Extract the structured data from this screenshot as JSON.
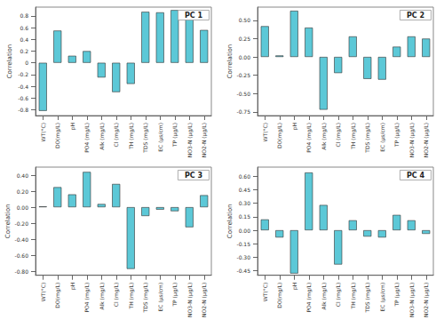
{
  "chart_data": [
    {
      "type": "bar",
      "title": "PC 1",
      "y_label": "Correlation",
      "categories": [
        "WT(°C)",
        "DO(mg/L)",
        "pH",
        "PO4 (mg/L)",
        "Alk (mg/L)",
        "Cl (mg/L)",
        "TH (mg/L)",
        "TDS (mg/L)",
        "EC (µs/cm)",
        "TP (µg/L)",
        "NO3-N (µg/L)",
        "NO2-N (µg/L)"
      ],
      "values": [
        -0.82,
        0.55,
        0.12,
        0.2,
        -0.25,
        -0.5,
        -0.36,
        0.87,
        0.86,
        0.9,
        0.8,
        0.56
      ],
      "color": "#5cc8d7",
      "ylim": [
        -0.9,
        0.95
      ],
      "yticks": [
        -0.8,
        -0.6,
        -0.4,
        -0.2,
        0,
        0.2,
        0.4,
        0.6,
        0.8
      ],
      "grid": false
    },
    {
      "type": "bar",
      "title": "PC 2",
      "y_label": "Correlation",
      "categories": [
        "WT(°C)",
        "DO(mg/L)",
        "pH",
        "PO4 (mg/L)",
        "Alk (mg/L)",
        "Cl (mg/L)",
        "TH (mg/L)",
        "TDS (mg/L)",
        "EC (µs/cm)",
        "TP (µg/L)",
        "NO3-N (µg/L)",
        "NO2-N (µg/L)"
      ],
      "values": [
        0.42,
        0.02,
        0.63,
        0.4,
        -0.72,
        -0.22,
        0.28,
        -0.3,
        -0.31,
        0.14,
        0.28,
        0.25
      ],
      "color": "#5cc8d7",
      "ylim": [
        -0.8,
        0.68
      ],
      "yticks": [
        {
          "value": -0.75,
          "label": "-0.75"
        },
        {
          "value": -0.5,
          "label": "-0.50"
        },
        {
          "value": -0.25,
          "label": "-0.25"
        },
        {
          "value": 0,
          "label": "0.00"
        },
        {
          "value": 0.25,
          "label": "0.25"
        },
        {
          "value": 0.5,
          "label": "0.50"
        }
      ],
      "grid": false
    },
    {
      "type": "bar",
      "title": "PC 3",
      "y_label": "Correlation",
      "categories": [
        "WT(°C)",
        "DO(mg/L)",
        "pH",
        "PO4 (mg/L)",
        "Alk (mg/L)",
        "Cl (mg/L)",
        "TH (mg/L)",
        "TDS (mg/L)",
        "EC (µs/cm)",
        "TP (µg/L)",
        "NO3-N (µg/L)",
        "NO2-N (µg/L)"
      ],
      "values": [
        0.01,
        0.25,
        0.16,
        0.44,
        0.04,
        0.29,
        -0.77,
        -0.11,
        -0.03,
        -0.05,
        -0.25,
        0.15
      ],
      "color": "#5cc8d7",
      "ylim": [
        -0.85,
        0.5
      ],
      "yticks": [
        {
          "value": -0.8,
          "label": "-0.80"
        },
        {
          "value": -0.6,
          "label": "-0.60"
        },
        {
          "value": -0.4,
          "label": "-0.40"
        },
        {
          "value": -0.2,
          "label": "-0.20"
        },
        {
          "value": 0,
          "label": "0.00"
        },
        {
          "value": 0.2,
          "label": "0.20"
        },
        {
          "value": 0.4,
          "label": "0.40"
        }
      ],
      "grid": false
    },
    {
      "type": "bar",
      "title": "PC 4",
      "y_label": "Correlation",
      "categories": [
        "WT(°C)",
        "DO(mg/L)",
        "pH",
        "PO4 (mg/L)",
        "Alk (mg/L)",
        "Cl (mg/L)",
        "TH (mg/L)",
        "TDS (mg/L)",
        "EC (µs/cm)",
        "TP (µg/L)",
        "NO3-N (µg/L)",
        "NO2-N (µg/L)"
      ],
      "values": [
        0.12,
        -0.08,
        -0.48,
        0.64,
        0.28,
        -0.38,
        0.11,
        -0.07,
        -0.08,
        0.17,
        0.11,
        -0.04
      ],
      "color": "#5cc8d7",
      "ylim": [
        -0.5,
        0.7
      ],
      "yticks": [
        {
          "value": -0.45,
          "label": "-0.45"
        },
        {
          "value": -0.3,
          "label": "-0.30"
        },
        {
          "value": -0.15,
          "label": "-0.15"
        },
        {
          "value": 0,
          "label": "0.00"
        },
        {
          "value": 0.15,
          "label": "0.15"
        },
        {
          "value": 0.3,
          "label": "0.30"
        },
        {
          "value": 0.45,
          "label": "0.45"
        },
        {
          "value": 0.6,
          "label": "0.60"
        }
      ],
      "grid": false
    }
  ]
}
